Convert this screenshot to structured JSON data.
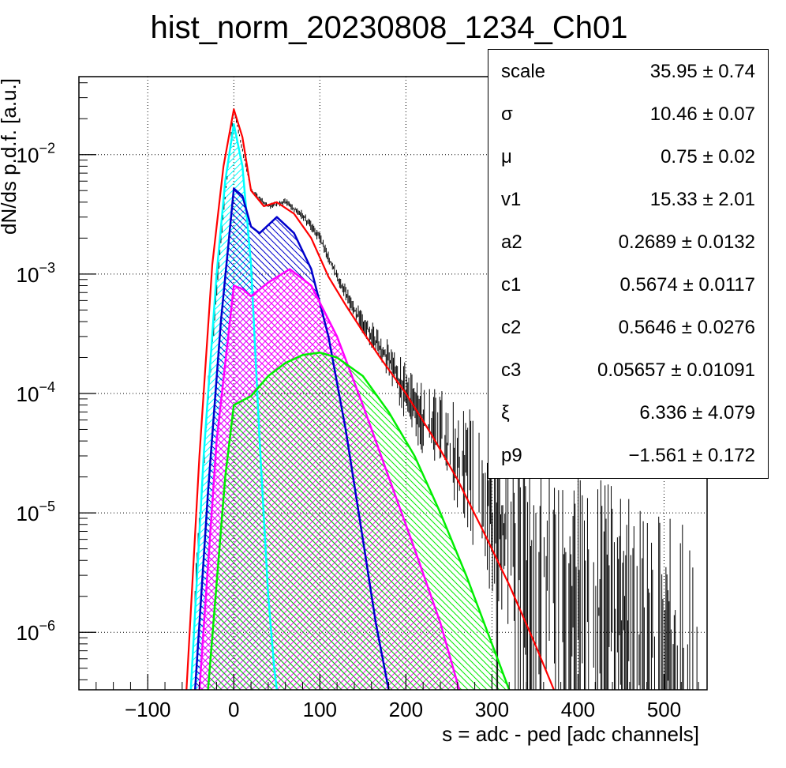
{
  "chart_data": {
    "type": "line",
    "title": "hist_norm_20230808_1234_Ch01",
    "xlabel": "s = adc - ped [adc channels]",
    "ylabel": "dN/ds p.d.f. [a.u.]",
    "xlim": [
      -180,
      550
    ],
    "ylim": [
      3.3e-07,
      0.045
    ],
    "y_scale": "log",
    "grid": true,
    "x_ticks": [
      -100,
      0,
      100,
      200,
      300,
      400,
      500
    ],
    "x_tick_labels": [
      "−100",
      "0",
      "100",
      "200",
      "300",
      "400",
      "500"
    ],
    "y_ticks": [
      1e-06,
      1e-05,
      0.0001,
      0.001,
      0.01
    ],
    "y_tick_labels": [
      {
        "base": "10",
        "exp": "−6"
      },
      {
        "base": "10",
        "exp": "−5"
      },
      {
        "base": "10",
        "exp": "−4"
      },
      {
        "base": "10",
        "exp": "−3"
      },
      {
        "base": "10",
        "exp": "−2"
      }
    ],
    "series": [
      {
        "color": "#00ffff",
        "hatch": "diag-up",
        "x": [
          -50,
          -35,
          -20,
          -10,
          0,
          10,
          20,
          30,
          40,
          47,
          50
        ],
        "y": [
          3.3e-07,
          3e-05,
          0.001,
          0.006,
          0.018,
          0.008,
          0.0012,
          4e-05,
          2e-06,
          5e-07,
          3.3e-07
        ]
      },
      {
        "color": "#0000cc",
        "hatch": "diag-down",
        "x": [
          -45,
          -30,
          -15,
          0,
          10,
          20,
          30,
          50,
          70,
          90,
          110,
          130,
          150,
          165,
          180
        ],
        "y": [
          3.3e-07,
          1.5e-05,
          0.0004,
          0.0052,
          0.0045,
          0.0025,
          0.0022,
          0.003,
          0.0022,
          0.0011,
          0.0003,
          5e-05,
          6e-06,
          1.2e-06,
          3.3e-07
        ]
      },
      {
        "color": "#ff00ff",
        "hatch": "cross",
        "x": [
          -40,
          -20,
          0,
          10,
          20,
          40,
          65,
          90,
          120,
          150,
          180,
          210,
          240,
          262
        ],
        "y": [
          3.3e-07,
          4e-05,
          0.0008,
          0.00075,
          0.00065,
          0.00085,
          0.0011,
          0.0008,
          0.0003,
          8e-05,
          2e-05,
          5e-06,
          1.2e-06,
          3.3e-07
        ]
      },
      {
        "color": "#00ee00",
        "hatch": "diag-down",
        "x": [
          -30,
          -10,
          0,
          20,
          40,
          60,
          80,
          100,
          120,
          150,
          180,
          210,
          240,
          270,
          300,
          320
        ],
        "y": [
          3.3e-07,
          2e-05,
          8e-05,
          9.5e-05,
          0.00014,
          0.00018,
          0.00021,
          0.00022,
          0.0002,
          0.00014,
          7e-05,
          3e-05,
          1e-05,
          3e-06,
          8e-07,
          3.3e-07
        ]
      },
      {
        "color": "#ff0000",
        "hatch": "none",
        "x": [
          -55,
          -40,
          -25,
          -12,
          0,
          10,
          20,
          35,
          50,
          70,
          90,
          110,
          130,
          150,
          170,
          200,
          230,
          260,
          290,
          320,
          350,
          372
        ],
        "y": [
          3.3e-07,
          3e-05,
          0.0012,
          0.008,
          0.024,
          0.014,
          0.005,
          0.0037,
          0.004,
          0.0032,
          0.002,
          0.00095,
          0.00055,
          0.00033,
          0.0002,
          0.0001,
          4.5e-05,
          1.9e-05,
          7e-06,
          2.5e-06,
          8e-07,
          3.3e-07
        ]
      }
    ],
    "data_band": {
      "color": "#000000",
      "x": [
        -45,
        -30,
        -15,
        0,
        20,
        40,
        60,
        80,
        100,
        120,
        140,
        160,
        180,
        200,
        220,
        240,
        260,
        280,
        300,
        320,
        340,
        360,
        380,
        400,
        420,
        440,
        460,
        480,
        500,
        520,
        540
      ],
      "y": [
        2e-06,
        0.0001,
        0.002,
        0.024,
        0.005,
        0.0037,
        0.004,
        0.0031,
        0.002,
        0.00095,
        0.0005,
        0.00031,
        0.00019,
        0.0001,
        6e-05,
        4.5e-05,
        3e-05,
        2e-05,
        1e-05,
        6e-06,
        4e-06,
        3e-06,
        2.5e-06,
        2e-06,
        1.5e-06,
        1.2e-06,
        1e-06,
        8e-07,
        7e-07,
        6e-07,
        5e-07
      ],
      "spread": [
        1.4,
        1.3,
        1.15,
        1.05,
        1.05,
        1.06,
        1.08,
        1.1,
        1.12,
        1.15,
        1.2,
        1.3,
        1.5,
        1.8,
        2.0,
        2.5,
        3.0,
        4.0,
        5.0,
        6.0,
        8.0,
        10.0,
        12.0,
        15.0,
        15.0,
        15.0,
        15.0,
        15.0,
        15.0,
        15.0,
        15.0
      ]
    },
    "legend": "top-right"
  },
  "stats": {
    "rows": [
      {
        "name": "scale",
        "value": "35.95 ± 0.74"
      },
      {
        "name": "σ",
        "value": "10.46 ± 0.07"
      },
      {
        "name": "μ",
        "value": "0.75 ± 0.02"
      },
      {
        "name": "v1",
        "value": "15.33 ± 2.01"
      },
      {
        "name": "a2",
        "value": "0.2689 ± 0.0132"
      },
      {
        "name": "c1",
        "value": "0.5674 ± 0.0117"
      },
      {
        "name": "c2",
        "value": "0.5646 ± 0.0276"
      },
      {
        "name": "c3",
        "value": "0.05657 ± 0.01091"
      },
      {
        "name": "ξ",
        "value": "6.336 ± 4.079"
      },
      {
        "name": "p9",
        "value": "−1.561 ± 0.172"
      }
    ]
  }
}
